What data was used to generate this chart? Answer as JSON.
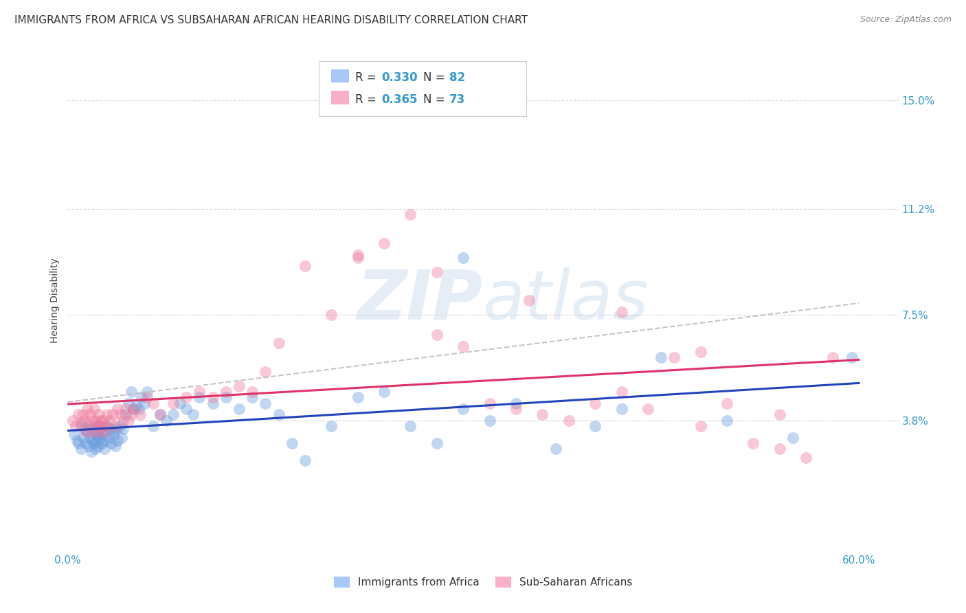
{
  "title": "IMMIGRANTS FROM AFRICA VS SUBSAHARAN AFRICAN HEARING DISABILITY CORRELATION CHART",
  "source": "Source: ZipAtlas.com",
  "ylabel_label": "Hearing Disability",
  "xlim": [
    0.0,
    0.63
  ],
  "ylim": [
    -0.008,
    0.168
  ],
  "yticks": [
    0.038,
    0.075,
    0.112,
    0.15
  ],
  "ytick_labels": [
    "3.8%",
    "7.5%",
    "11.2%",
    "15.0%"
  ],
  "xticks": [
    0.0,
    0.6
  ],
  "xtick_labels": [
    "0.0%",
    "60.0%"
  ],
  "series1_color": "#6699dd",
  "series2_color": "#ee7799",
  "line1_color": "#2244bb",
  "line2_color": "#dd3366",
  "conf_color": "#bbbbbb",
  "background_color": "#ffffff",
  "grid_color": "#cccccc",
  "watermark_color": "#ccddf0",
  "title_fontsize": 11,
  "tick_fontsize": 11,
  "source_fontsize": 9,
  "series1_x": [
    0.005,
    0.007,
    0.008,
    0.01,
    0.01,
    0.012,
    0.013,
    0.014,
    0.015,
    0.016,
    0.017,
    0.018,
    0.018,
    0.019,
    0.02,
    0.02,
    0.021,
    0.021,
    0.022,
    0.022,
    0.023,
    0.023,
    0.024,
    0.025,
    0.026,
    0.026,
    0.027,
    0.028,
    0.029,
    0.03,
    0.031,
    0.032,
    0.033,
    0.034,
    0.035,
    0.036,
    0.037,
    0.038,
    0.04,
    0.041,
    0.042,
    0.044,
    0.046,
    0.048,
    0.05,
    0.052,
    0.054,
    0.056,
    0.058,
    0.06,
    0.065,
    0.07,
    0.075,
    0.08,
    0.085,
    0.09,
    0.095,
    0.1,
    0.11,
    0.12,
    0.13,
    0.14,
    0.15,
    0.16,
    0.17,
    0.18,
    0.2,
    0.22,
    0.24,
    0.26,
    0.28,
    0.3,
    0.32,
    0.34,
    0.37,
    0.4,
    0.45,
    0.5,
    0.55,
    0.595,
    0.3,
    0.42
  ],
  "series1_y": [
    0.033,
    0.031,
    0.03,
    0.036,
    0.028,
    0.032,
    0.035,
    0.03,
    0.034,
    0.029,
    0.032,
    0.027,
    0.035,
    0.031,
    0.036,
    0.03,
    0.033,
    0.028,
    0.035,
    0.031,
    0.033,
    0.029,
    0.036,
    0.032,
    0.034,
    0.03,
    0.033,
    0.028,
    0.031,
    0.036,
    0.032,
    0.035,
    0.03,
    0.034,
    0.033,
    0.029,
    0.035,
    0.031,
    0.036,
    0.032,
    0.035,
    0.04,
    0.044,
    0.048,
    0.042,
    0.043,
    0.042,
    0.046,
    0.044,
    0.048,
    0.036,
    0.04,
    0.038,
    0.04,
    0.044,
    0.042,
    0.04,
    0.046,
    0.044,
    0.046,
    0.042,
    0.046,
    0.044,
    0.04,
    0.03,
    0.024,
    0.036,
    0.046,
    0.048,
    0.036,
    0.03,
    0.042,
    0.038,
    0.044,
    0.028,
    0.036,
    0.06,
    0.038,
    0.032,
    0.06,
    0.095,
    0.042
  ],
  "series2_x": [
    0.004,
    0.006,
    0.008,
    0.01,
    0.012,
    0.013,
    0.014,
    0.015,
    0.016,
    0.017,
    0.018,
    0.019,
    0.02,
    0.021,
    0.022,
    0.023,
    0.024,
    0.025,
    0.026,
    0.027,
    0.028,
    0.029,
    0.03,
    0.032,
    0.034,
    0.036,
    0.038,
    0.04,
    0.042,
    0.044,
    0.046,
    0.048,
    0.05,
    0.055,
    0.06,
    0.065,
    0.07,
    0.08,
    0.09,
    0.1,
    0.11,
    0.12,
    0.13,
    0.14,
    0.15,
    0.16,
    0.18,
    0.2,
    0.22,
    0.24,
    0.26,
    0.28,
    0.3,
    0.32,
    0.34,
    0.36,
    0.38,
    0.4,
    0.42,
    0.44,
    0.46,
    0.48,
    0.5,
    0.52,
    0.54,
    0.56,
    0.58,
    0.22,
    0.28,
    0.35,
    0.42,
    0.48,
    0.54
  ],
  "series2_y": [
    0.038,
    0.036,
    0.04,
    0.037,
    0.04,
    0.038,
    0.034,
    0.042,
    0.036,
    0.04,
    0.038,
    0.034,
    0.042,
    0.038,
    0.036,
    0.034,
    0.04,
    0.038,
    0.036,
    0.038,
    0.034,
    0.036,
    0.04,
    0.038,
    0.04,
    0.036,
    0.042,
    0.04,
    0.038,
    0.042,
    0.038,
    0.04,
    0.042,
    0.04,
    0.046,
    0.044,
    0.04,
    0.044,
    0.046,
    0.048,
    0.046,
    0.048,
    0.05,
    0.048,
    0.055,
    0.065,
    0.092,
    0.075,
    0.095,
    0.1,
    0.11,
    0.068,
    0.064,
    0.044,
    0.042,
    0.04,
    0.038,
    0.044,
    0.048,
    0.042,
    0.06,
    0.036,
    0.044,
    0.03,
    0.04,
    0.025,
    0.06,
    0.096,
    0.09,
    0.08,
    0.076,
    0.062,
    0.028
  ],
  "r1": "0.330",
  "n1": "82",
  "r2": "0.365",
  "n2": "73",
  "legend1_label": "Immigrants from Africa",
  "legend2_label": "Sub-Saharan Africans"
}
